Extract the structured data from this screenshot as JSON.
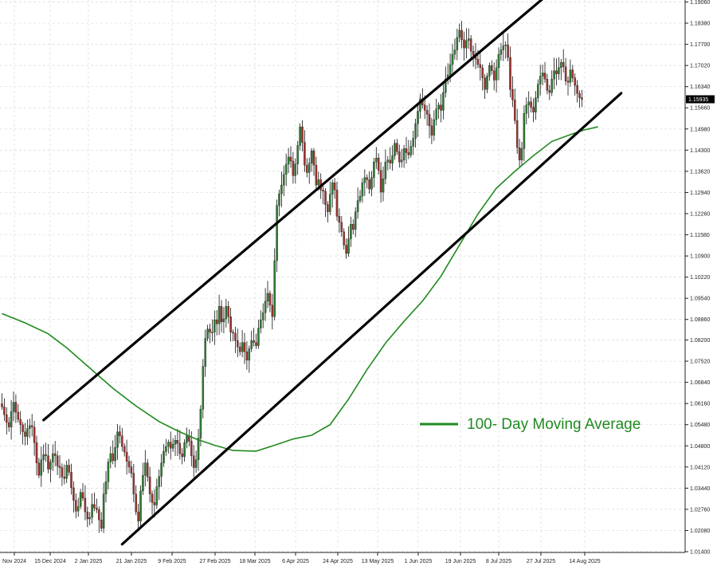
{
  "chart_data": {
    "type": "candlestick",
    "instrument_price_label": "1.15935",
    "ylim": [
      1.014,
      1.1906
    ],
    "y_ticks": [
      "1.19060",
      "1.18380",
      "1.17700",
      "1.17020",
      "1.16340",
      "1.15660",
      "1.14980",
      "1.14300",
      "1.13620",
      "1.12940",
      "1.12260",
      "1.11580",
      "1.10900",
      "1.10220",
      "1.09540",
      "1.08860",
      "1.08200",
      "1.07520",
      "1.06840",
      "1.06160",
      "1.05480",
      "1.04800",
      "1.04120",
      "1.03440",
      "1.02760",
      "1.02080",
      "1.01400"
    ],
    "x_ticks": [
      "Nov 2024",
      "15 Dec 2024",
      "2 Jan 2025",
      "21 Jan 2025",
      "9 Feb 2025",
      "27 Feb 2025",
      "18 Mar 2025",
      "6 Apr 2025",
      "24 Apr 2025",
      "13 May 2025",
      "1 Jun 2025",
      "19 Jun 2025",
      "8 Jul 2025",
      "27 Jul 2025",
      "14 Aug 2025"
    ],
    "grid": true,
    "colors": {
      "up": "#2e7d32",
      "down": "#a0322d",
      "wick": "#111111",
      "ma": "#1f8a1f",
      "channel": "#000000",
      "grid": "#d9d9d9",
      "price_tag": "#000000"
    },
    "legend": {
      "label": "100- Day Moving Average",
      "placement": "center-right"
    },
    "series": [
      {
        "name": "100- Day Moving Average",
        "type": "line",
        "points": [
          [
            0,
            1.0905
          ],
          [
            10,
            1.0875
          ],
          [
            20,
            1.084
          ],
          [
            28,
            1.0795
          ],
          [
            38,
            1.073
          ],
          [
            48,
            1.0665
          ],
          [
            58,
            1.0608
          ],
          [
            68,
            1.0558
          ],
          [
            76,
            1.0528
          ],
          [
            84,
            1.0502
          ],
          [
            92,
            1.0482
          ],
          [
            100,
            1.0465
          ],
          [
            110,
            1.0463
          ],
          [
            118,
            1.0482
          ],
          [
            126,
            1.0502
          ],
          [
            134,
            1.0514
          ],
          [
            142,
            1.0548
          ],
          [
            150,
            1.063
          ],
          [
            158,
            1.0725
          ],
          [
            166,
            1.081
          ],
          [
            174,
            1.088
          ],
          [
            182,
            1.0945
          ],
          [
            190,
            1.1025
          ],
          [
            198,
            1.1125
          ],
          [
            206,
            1.1225
          ],
          [
            214,
            1.1308
          ],
          [
            222,
            1.1362
          ],
          [
            230,
            1.1412
          ],
          [
            238,
            1.1458
          ],
          [
            246,
            1.148
          ],
          [
            252,
            1.1495
          ],
          [
            258,
            1.1505
          ]
        ]
      },
      {
        "name": "Upper channel",
        "type": "line",
        "points": [
          [
            18,
            1.0563
          ],
          [
            234,
            1.1916
          ]
        ]
      },
      {
        "name": "Lower channel",
        "type": "line",
        "points": [
          [
            52,
            1.0164
          ],
          [
            268,
            1.1613
          ]
        ]
      }
    ],
    "candles_close": [
      1.0605,
      1.058,
      1.0555,
      1.054,
      1.059,
      1.062,
      1.0588,
      1.0565,
      1.0548,
      1.0525,
      1.051,
      1.0535,
      1.0545,
      1.054,
      1.049,
      1.0425,
      1.0385,
      1.0435,
      1.0452,
      1.0448,
      1.0405,
      1.0428,
      1.0455,
      1.0448,
      1.0415,
      1.041,
      1.038,
      1.0375,
      1.0418,
      1.0395,
      1.0345,
      1.0305,
      1.027,
      1.0285,
      1.033,
      1.0312,
      1.0268,
      1.0245,
      1.025,
      1.0292,
      1.028,
      1.0275,
      1.0242,
      1.0215,
      1.0325,
      1.0365,
      1.0428,
      1.0455,
      1.0432,
      1.0475,
      1.0525,
      1.0512,
      1.0478,
      1.046,
      1.043,
      1.0412,
      1.0392,
      1.0325,
      1.0268,
      1.0238,
      1.0335,
      1.0385,
      1.0425,
      1.038,
      1.0325,
      1.0298,
      1.029,
      1.0348,
      1.0382,
      1.0425,
      1.0462,
      1.0478,
      1.0492,
      1.0472,
      1.0485,
      1.0498,
      1.0488,
      1.0455,
      1.0445,
      1.049,
      1.0512,
      1.0495,
      1.0448,
      1.041,
      1.0435,
      1.0505,
      1.0598,
      1.0735,
      1.0825,
      1.0855,
      1.0845,
      1.0845,
      1.0885,
      1.0872,
      1.0928,
      1.0878,
      1.0888,
      1.0928,
      1.0895,
      1.0845,
      1.0842,
      1.0818,
      1.0798,
      1.0782,
      1.0812,
      1.0782,
      1.0755,
      1.0792,
      1.0818,
      1.0812,
      1.0802,
      1.0858,
      1.0885,
      1.0908,
      1.0945,
      1.097,
      1.0932,
      1.0895,
      1.1075,
      1.1252,
      1.129,
      1.1318,
      1.1352,
      1.1385,
      1.1408,
      1.1395,
      1.1348,
      1.1385,
      1.1445,
      1.1505,
      1.1455,
      1.1382,
      1.1358,
      1.1388,
      1.1428,
      1.1382,
      1.1318,
      1.1335,
      1.1302,
      1.1298,
      1.1255,
      1.1232,
      1.1288,
      1.1325,
      1.1302,
      1.1218,
      1.1198,
      1.1168,
      1.1125,
      1.1098,
      1.1145,
      1.1192,
      1.1175,
      1.1232,
      1.1268,
      1.1282,
      1.1325,
      1.1342,
      1.1335,
      1.1305,
      1.1342,
      1.1392,
      1.1405,
      1.1365,
      1.1295,
      1.1338,
      1.1392,
      1.1398,
      1.1388,
      1.1412,
      1.1452,
      1.1425,
      1.1392,
      1.1398,
      1.1435,
      1.1422,
      1.1415,
      1.1442,
      1.1468,
      1.1515,
      1.1555,
      1.1595,
      1.1575,
      1.1558,
      1.1545,
      1.1508,
      1.1478,
      1.1528,
      1.1562,
      1.1575,
      1.1558,
      1.1615,
      1.1658,
      1.1672,
      1.1705,
      1.1738,
      1.1752,
      1.1792,
      1.1815,
      1.1785,
      1.1758,
      1.1782,
      1.1788,
      1.1748,
      1.1735,
      1.1722,
      1.1705,
      1.1695,
      1.1662,
      1.1625,
      1.1668,
      1.1702,
      1.1685,
      1.1655,
      1.1695,
      1.1738,
      1.1752,
      1.1765,
      1.1768,
      1.1728,
      1.1625,
      1.1592,
      1.1525,
      1.1438,
      1.1398,
      1.1435,
      1.1548,
      1.1575,
      1.1585,
      1.1568,
      1.1552,
      1.1598,
      1.1642,
      1.1668,
      1.1678,
      1.1658,
      1.1622,
      1.1615,
      1.1658,
      1.1685,
      1.1675,
      1.1695,
      1.1712,
      1.1698,
      1.1652,
      1.1648,
      1.1688,
      1.1662,
      1.1638,
      1.1612,
      1.1598,
      1.15935
    ]
  }
}
